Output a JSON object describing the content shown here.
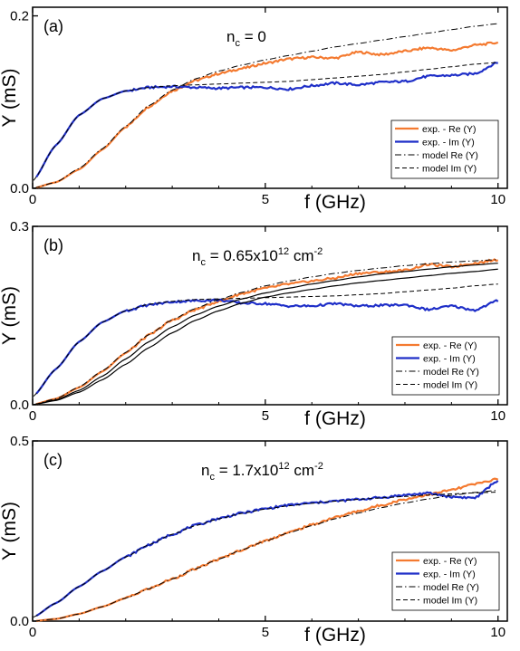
{
  "colors": {
    "exp_re": "#f47a30",
    "exp_im": "#1f2fc8",
    "model": "#000000"
  },
  "chart_data": [
    {
      "type": "line",
      "panel_label": "(a)",
      "annotation": {
        "main": "n",
        "sub": "c",
        "rest": " = 0",
        "sup": ""
      },
      "xlabel": "f (GHz)",
      "ylabel": "Y (mS)",
      "xlim": [
        0,
        10.2
      ],
      "ylim": [
        0,
        0.21
      ],
      "x_ticks": [
        {
          "v": 0,
          "label": "0"
        },
        {
          "v": 5,
          "label": "5"
        },
        {
          "v": 10,
          "label": "10"
        }
      ],
      "y_ticks": [
        {
          "v": 0,
          "label": "0.0"
        },
        {
          "v": 0.2,
          "label": "0.2"
        }
      ],
      "legend": {
        "position": "lower-right",
        "entries": [
          {
            "label": "exp. -  Re (Y)",
            "style": "exp_re"
          },
          {
            "label": "exp. -  Im (Y)",
            "style": "exp_im"
          },
          {
            "label": "model  Re (Y)",
            "style": "dashdot"
          },
          {
            "label": "model  Im (Y)",
            "style": "dashed"
          }
        ]
      },
      "series": [
        {
          "style": "exp_re",
          "x": [
            0,
            0.5,
            1,
            1.5,
            2,
            2.5,
            3,
            3.5,
            4,
            4.5,
            5,
            5.5,
            6,
            6.5,
            7,
            7.5,
            8,
            8.5,
            9,
            9.5,
            10
          ],
          "y": [
            0,
            0.007,
            0.022,
            0.045,
            0.071,
            0.095,
            0.113,
            0.125,
            0.133,
            0.139,
            0.145,
            0.15,
            0.152,
            0.151,
            0.158,
            0.155,
            0.159,
            0.163,
            0.16,
            0.166,
            0.169
          ]
        },
        {
          "style": "exp_im",
          "x": [
            0,
            0.5,
            1,
            1.5,
            2,
            2.5,
            3,
            3.5,
            4,
            4.5,
            5,
            5.5,
            6,
            6.5,
            7,
            7.5,
            8,
            8.5,
            9,
            9.5,
            10
          ],
          "y": [
            0.008,
            0.05,
            0.085,
            0.104,
            0.113,
            0.117,
            0.118,
            0.117,
            0.116,
            0.117,
            0.117,
            0.115,
            0.119,
            0.122,
            0.12,
            0.123,
            0.124,
            0.13,
            0.131,
            0.133,
            0.146
          ]
        },
        {
          "style": "dashdot",
          "x": [
            0,
            0.5,
            1,
            1.5,
            2,
            2.5,
            3,
            3.5,
            4,
            4.5,
            5,
            5.5,
            6,
            6.5,
            7,
            7.5,
            8,
            8.5,
            9,
            9.5,
            10
          ],
          "y": [
            0,
            0.007,
            0.023,
            0.046,
            0.072,
            0.096,
            0.114,
            0.127,
            0.136,
            0.143,
            0.149,
            0.154,
            0.159,
            0.164,
            0.168,
            0.172,
            0.176,
            0.18,
            0.184,
            0.188,
            0.191
          ]
        },
        {
          "style": "dashed",
          "x": [
            0,
            0.5,
            1,
            1.5,
            2,
            2.5,
            3,
            3.5,
            4,
            4.5,
            5,
            5.5,
            6,
            6.5,
            7,
            7.5,
            8,
            8.5,
            9,
            9.5,
            10
          ],
          "y": [
            0.008,
            0.05,
            0.085,
            0.104,
            0.113,
            0.117,
            0.119,
            0.12,
            0.121,
            0.122,
            0.123,
            0.124,
            0.126,
            0.128,
            0.13,
            0.132,
            0.135,
            0.138,
            0.141,
            0.144,
            0.146
          ]
        }
      ]
    },
    {
      "type": "line",
      "panel_label": "(b)",
      "annotation": {
        "main": "n",
        "sub": "c",
        "rest": " = 0.65x10",
        "sup": "12",
        "unit": " cm",
        "unit_sup": "-2"
      },
      "xlabel": "f (GHz)",
      "ylabel": "Y (mS)",
      "xlim": [
        0,
        10.2
      ],
      "ylim": [
        0,
        0.3
      ],
      "x_ticks": [
        {
          "v": 0,
          "label": "0"
        },
        {
          "v": 5,
          "label": "5"
        },
        {
          "v": 10,
          "label": "10"
        }
      ],
      "y_ticks": [
        {
          "v": 0,
          "label": "0.0"
        },
        {
          "v": 0.3,
          "label": "0.3"
        }
      ],
      "legend": {
        "position": "lower-right",
        "entries": [
          {
            "label": "exp. -   Re (Y)",
            "style": "exp_re"
          },
          {
            "label": "exp. -   Im (Y)",
            "style": "exp_im"
          },
          {
            "label": "model  Re (Y)",
            "style": "dashdot"
          },
          {
            "label": "model  Im (Y)",
            "style": "dashed"
          }
        ]
      },
      "series": [
        {
          "style": "exp_re",
          "x": [
            0,
            0.5,
            1,
            1.5,
            2,
            2.5,
            3,
            3.5,
            4,
            4.5,
            5,
            5.5,
            6,
            6.5,
            7,
            7.5,
            8,
            8.5,
            9,
            9.5,
            10
          ],
          "y": [
            0,
            0.01,
            0.029,
            0.056,
            0.087,
            0.117,
            0.142,
            0.16,
            0.174,
            0.187,
            0.196,
            0.203,
            0.208,
            0.213,
            0.221,
            0.223,
            0.226,
            0.236,
            0.232,
            0.238,
            0.244
          ]
        },
        {
          "style": "exp_im",
          "x": [
            0,
            0.5,
            1,
            1.5,
            2,
            2.5,
            3,
            3.5,
            4,
            4.5,
            5,
            5.5,
            6,
            6.5,
            7,
            7.5,
            8,
            8.5,
            9,
            9.5,
            10
          ],
          "y": [
            0.013,
            0.06,
            0.106,
            0.139,
            0.158,
            0.168,
            0.173,
            0.175,
            0.176,
            0.171,
            0.17,
            0.166,
            0.166,
            0.17,
            0.166,
            0.167,
            0.168,
            0.16,
            0.166,
            0.159,
            0.175
          ]
        },
        {
          "style": "dashdot",
          "x": [
            0,
            0.5,
            1,
            1.5,
            2,
            2.5,
            3,
            3.5,
            4,
            4.5,
            5,
            5.5,
            6,
            6.5,
            7,
            7.5,
            8,
            8.5,
            9,
            9.5,
            10
          ],
          "y": [
            0,
            0.01,
            0.03,
            0.057,
            0.088,
            0.118,
            0.143,
            0.162,
            0.177,
            0.189,
            0.2,
            0.208,
            0.215,
            0.221,
            0.226,
            0.23,
            0.234,
            0.237,
            0.24,
            0.242,
            0.244
          ]
        },
        {
          "style": "dashed",
          "x": [
            0,
            0.5,
            1,
            1.5,
            2,
            2.5,
            3,
            3.5,
            4,
            4.5,
            5,
            5.5,
            6,
            6.5,
            7,
            7.5,
            8,
            8.5,
            9,
            9.5,
            10
          ],
          "y": [
            0.013,
            0.06,
            0.106,
            0.139,
            0.158,
            0.169,
            0.174,
            0.177,
            0.178,
            0.179,
            0.18,
            0.181,
            0.182,
            0.183,
            0.185,
            0.187,
            0.19,
            0.193,
            0.196,
            0.2,
            0.203
          ]
        },
        {
          "style": "solid",
          "x": [
            0,
            0.5,
            1,
            1.5,
            2,
            2.5,
            3,
            3.5,
            4,
            4.5,
            5,
            5.5,
            6,
            6.5,
            7,
            7.5,
            8,
            8.5,
            9,
            9.5,
            10
          ],
          "y": [
            0,
            0.008,
            0.024,
            0.048,
            0.077,
            0.106,
            0.131,
            0.151,
            0.166,
            0.178,
            0.188,
            0.196,
            0.203,
            0.209,
            0.215,
            0.22,
            0.224,
            0.228,
            0.232,
            0.235,
            0.238
          ]
        },
        {
          "style": "solid",
          "x": [
            0,
            0.5,
            1,
            1.5,
            2,
            2.5,
            3,
            3.5,
            4,
            4.5,
            5,
            5.5,
            6,
            6.5,
            7,
            7.5,
            8,
            8.5,
            9,
            9.5,
            10
          ],
          "y": [
            0,
            0.007,
            0.021,
            0.042,
            0.068,
            0.096,
            0.121,
            0.142,
            0.158,
            0.171,
            0.181,
            0.188,
            0.194,
            0.2,
            0.205,
            0.209,
            0.213,
            0.217,
            0.221,
            0.224,
            0.228
          ]
        }
      ]
    },
    {
      "type": "line",
      "panel_label": "(c)",
      "annotation": {
        "main": "n",
        "sub": "c",
        "rest": " = 1.7x10",
        "sup": "12",
        "unit": " cm",
        "unit_sup": "-2"
      },
      "xlabel": "f (GHz)",
      "ylabel": "Y (mS)",
      "xlim": [
        0,
        10.2
      ],
      "ylim": [
        0,
        0.5
      ],
      "x_ticks": [
        {
          "v": 0,
          "label": "0"
        },
        {
          "v": 5,
          "label": "5"
        },
        {
          "v": 10,
          "label": "10"
        }
      ],
      "y_ticks": [
        {
          "v": 0,
          "label": "0.0"
        },
        {
          "v": 0.5,
          "label": "0.5"
        }
      ],
      "legend": {
        "position": "lower-right",
        "entries": [
          {
            "label": "exp. -   Re (Y)",
            "style": "exp_re"
          },
          {
            "label": "exp. -    Im (Y)",
            "style": "exp_im"
          },
          {
            "label": "model  Re (Y)",
            "style": "dashdot"
          },
          {
            "label": "model  Im (Y)",
            "style": "dashed"
          }
        ]
      },
      "series": [
        {
          "style": "exp_re",
          "x": [
            0,
            0.5,
            1,
            1.5,
            2,
            2.5,
            3,
            3.5,
            4,
            4.5,
            5,
            5.5,
            6,
            6.5,
            7,
            7.5,
            8,
            8.5,
            9,
            9.5,
            10
          ],
          "y": [
            0,
            0.006,
            0.02,
            0.04,
            0.064,
            0.09,
            0.117,
            0.145,
            0.172,
            0.198,
            0.223,
            0.246,
            0.267,
            0.288,
            0.305,
            0.322,
            0.338,
            0.351,
            0.364,
            0.38,
            0.395
          ]
        },
        {
          "style": "exp_im",
          "x": [
            0,
            0.5,
            1,
            1.5,
            2,
            2.5,
            3,
            3.5,
            4,
            4.5,
            5,
            5.5,
            6,
            6.5,
            7,
            7.5,
            8,
            8.5,
            9,
            9.5,
            10
          ],
          "y": [
            0.01,
            0.05,
            0.096,
            0.139,
            0.178,
            0.212,
            0.241,
            0.266,
            0.285,
            0.3,
            0.312,
            0.322,
            0.328,
            0.333,
            0.338,
            0.343,
            0.35,
            0.355,
            0.345,
            0.342,
            0.39
          ]
        },
        {
          "style": "dashdot",
          "x": [
            0,
            0.5,
            1,
            1.5,
            2,
            2.5,
            3,
            3.5,
            4,
            4.5,
            5,
            5.5,
            6,
            6.5,
            7,
            7.5,
            8,
            8.5,
            9,
            9.5,
            10
          ],
          "y": [
            0,
            0.006,
            0.02,
            0.04,
            0.064,
            0.09,
            0.117,
            0.145,
            0.172,
            0.198,
            0.222,
            0.245,
            0.265,
            0.284,
            0.3,
            0.315,
            0.328,
            0.339,
            0.349,
            0.357,
            0.363
          ]
        },
        {
          "style": "dashed",
          "x": [
            0,
            0.5,
            1,
            1.5,
            2,
            2.5,
            3,
            3.5,
            4,
            4.5,
            5,
            5.5,
            6,
            6.5,
            7,
            7.5,
            8,
            8.5,
            9,
            9.5,
            10
          ],
          "y": [
            0.01,
            0.05,
            0.096,
            0.139,
            0.178,
            0.212,
            0.241,
            0.265,
            0.284,
            0.299,
            0.311,
            0.32,
            0.327,
            0.333,
            0.338,
            0.342,
            0.346,
            0.35,
            0.353,
            0.356,
            0.358
          ]
        }
      ]
    }
  ]
}
